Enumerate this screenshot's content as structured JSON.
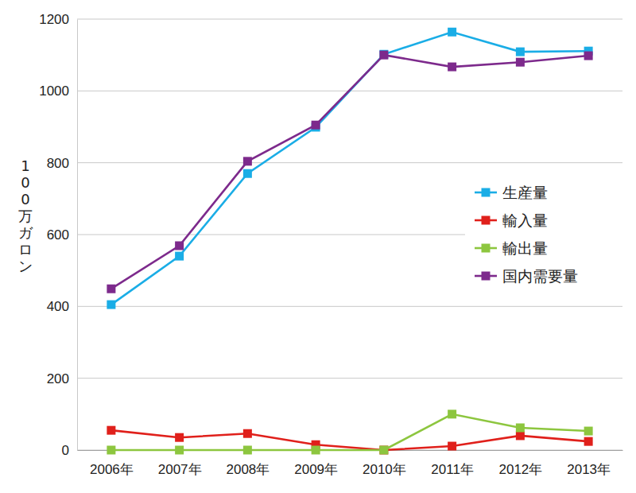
{
  "chart_data": {
    "type": "line",
    "y_label": "100万ガロン",
    "categories": [
      "2006年",
      "2007年",
      "2008年",
      "2009年",
      "2010年",
      "2011年",
      "2012年",
      "2013年"
    ],
    "series": [
      {
        "name": "生産量",
        "color": "#1aade6",
        "marker": "square",
        "values": [
          405,
          540,
          770,
          899,
          1102,
          1164,
          1109,
          1111
        ]
      },
      {
        "name": "輸入量",
        "color": "#e0201b",
        "marker": "square",
        "values": [
          55,
          35,
          46,
          15,
          0,
          11,
          40,
          24
        ]
      },
      {
        "name": "輸出量",
        "color": "#8dc63f",
        "marker": "square",
        "values": [
          0,
          0,
          0,
          0,
          0,
          100,
          62,
          53
        ]
      },
      {
        "name": "国内需要量",
        "color": "#7d2a8c",
        "marker": "square",
        "values": [
          449,
          569,
          804,
          905,
          1100,
          1067,
          1080,
          1098
        ]
      }
    ],
    "ylim": [
      0,
      1200
    ],
    "yticks": [
      0,
      200,
      400,
      600,
      800,
      1000,
      1200
    ],
    "grid": true,
    "legend": "right"
  }
}
